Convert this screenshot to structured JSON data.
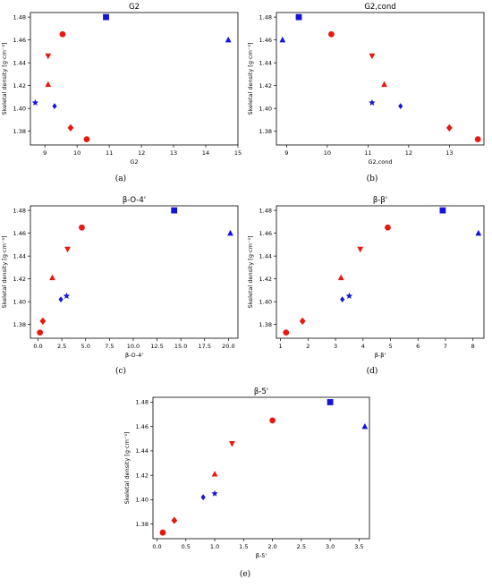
{
  "colors": {
    "red": "#e8190f",
    "blue": "#1414d8"
  },
  "chart_data": [
    {
      "type": "scatter",
      "id": "a",
      "caption": "(a)",
      "title": "G2",
      "xlabel": "G2",
      "ylabel": "Skeletal density [g·cm⁻³]",
      "xlim": [
        8.55,
        15.0
      ],
      "ylim": [
        1.368,
        1.484
      ],
      "xticks": [
        9,
        10,
        11,
        12,
        13,
        14,
        15
      ],
      "yticks": [
        1.38,
        1.4,
        1.42,
        1.44,
        1.46,
        1.48
      ],
      "points": [
        {
          "x": 9.55,
          "y": 1.465,
          "marker": "circle",
          "color": "red"
        },
        {
          "x": 9.1,
          "y": 1.446,
          "marker": "triangle-down",
          "color": "red"
        },
        {
          "x": 9.1,
          "y": 1.421,
          "marker": "triangle-up",
          "color": "red"
        },
        {
          "x": 9.8,
          "y": 1.383,
          "marker": "diamond",
          "color": "red"
        },
        {
          "x": 10.3,
          "y": 1.373,
          "marker": "circle",
          "color": "red"
        },
        {
          "x": 10.9,
          "y": 1.48,
          "marker": "square",
          "color": "blue"
        },
        {
          "x": 14.7,
          "y": 1.46,
          "marker": "triangle-up",
          "color": "blue"
        },
        {
          "x": 8.7,
          "y": 1.405,
          "marker": "star",
          "color": "blue"
        },
        {
          "x": 9.3,
          "y": 1.402,
          "marker": "plus",
          "color": "blue"
        }
      ]
    },
    {
      "type": "scatter",
      "id": "b",
      "caption": "(b)",
      "title": "G2,cond",
      "xlabel": "G2,cond",
      "ylabel": "Skeletal density [g·cm⁻³]",
      "xlim": [
        8.75,
        13.85
      ],
      "ylim": [
        1.368,
        1.484
      ],
      "xticks": [
        9,
        10,
        11,
        12,
        13
      ],
      "yticks": [
        1.38,
        1.4,
        1.42,
        1.44,
        1.46,
        1.48
      ],
      "points": [
        {
          "x": 10.1,
          "y": 1.465,
          "marker": "circle",
          "color": "red"
        },
        {
          "x": 11.1,
          "y": 1.446,
          "marker": "triangle-down",
          "color": "red"
        },
        {
          "x": 11.4,
          "y": 1.421,
          "marker": "triangle-up",
          "color": "red"
        },
        {
          "x": 13.0,
          "y": 1.383,
          "marker": "diamond",
          "color": "red"
        },
        {
          "x": 13.7,
          "y": 1.373,
          "marker": "circle",
          "color": "red"
        },
        {
          "x": 9.3,
          "y": 1.48,
          "marker": "square",
          "color": "blue"
        },
        {
          "x": 8.9,
          "y": 1.46,
          "marker": "triangle-up",
          "color": "blue"
        },
        {
          "x": 11.1,
          "y": 1.405,
          "marker": "star",
          "color": "blue"
        },
        {
          "x": 11.8,
          "y": 1.402,
          "marker": "plus",
          "color": "blue"
        }
      ]
    },
    {
      "type": "scatter",
      "id": "c",
      "caption": "(c)",
      "title": "β-O-4'",
      "xlabel": "β-O-4'",
      "ylabel": "Skeletal density [g·cm⁻³]",
      "xlim": [
        -0.8,
        21.0
      ],
      "ylim": [
        1.368,
        1.484
      ],
      "xticks": [
        0.0,
        2.5,
        5.0,
        7.5,
        10.0,
        12.5,
        15.0,
        17.5,
        20.0
      ],
      "ytickFmt": 2,
      "yticks": [
        1.38,
        1.4,
        1.42,
        1.44,
        1.46,
        1.48
      ],
      "points": [
        {
          "x": 4.6,
          "y": 1.465,
          "marker": "circle",
          "color": "red"
        },
        {
          "x": 3.1,
          "y": 1.446,
          "marker": "triangle-down",
          "color": "red"
        },
        {
          "x": 1.5,
          "y": 1.421,
          "marker": "triangle-up",
          "color": "red"
        },
        {
          "x": 0.5,
          "y": 1.383,
          "marker": "diamond",
          "color": "red"
        },
        {
          "x": 0.2,
          "y": 1.373,
          "marker": "circle",
          "color": "red"
        },
        {
          "x": 14.3,
          "y": 1.48,
          "marker": "square",
          "color": "blue"
        },
        {
          "x": 20.2,
          "y": 1.46,
          "marker": "triangle-up",
          "color": "blue"
        },
        {
          "x": 3.0,
          "y": 1.405,
          "marker": "star",
          "color": "blue"
        },
        {
          "x": 2.4,
          "y": 1.402,
          "marker": "plus",
          "color": "blue"
        }
      ]
    },
    {
      "type": "scatter",
      "id": "d",
      "caption": "(d)",
      "title": "β-β'",
      "xlabel": "β-β'",
      "ylabel": "Skeletal density [g·cm⁻³]",
      "xlim": [
        0.85,
        8.4
      ],
      "ylim": [
        1.368,
        1.484
      ],
      "xticks": [
        1,
        2,
        3,
        4,
        5,
        6,
        7,
        8
      ],
      "yticks": [
        1.38,
        1.4,
        1.42,
        1.44,
        1.46,
        1.48
      ],
      "points": [
        {
          "x": 4.9,
          "y": 1.465,
          "marker": "circle",
          "color": "red"
        },
        {
          "x": 3.9,
          "y": 1.446,
          "marker": "triangle-down",
          "color": "red"
        },
        {
          "x": 3.2,
          "y": 1.421,
          "marker": "triangle-up",
          "color": "red"
        },
        {
          "x": 1.8,
          "y": 1.383,
          "marker": "diamond",
          "color": "red"
        },
        {
          "x": 1.2,
          "y": 1.373,
          "marker": "circle",
          "color": "red"
        },
        {
          "x": 6.9,
          "y": 1.48,
          "marker": "square",
          "color": "blue"
        },
        {
          "x": 8.2,
          "y": 1.46,
          "marker": "triangle-up",
          "color": "blue"
        },
        {
          "x": 3.5,
          "y": 1.405,
          "marker": "star",
          "color": "blue"
        },
        {
          "x": 3.25,
          "y": 1.402,
          "marker": "plus",
          "color": "blue"
        }
      ]
    },
    {
      "type": "scatter",
      "id": "e",
      "caption": "(e)",
      "title": "β-5'",
      "xlabel": "β-5'",
      "ylabel": "Skeletal density [g·cm⁻³]",
      "xlim": [
        -0.07,
        3.68
      ],
      "ylim": [
        1.368,
        1.484
      ],
      "xticks": [
        0.0,
        0.5,
        1.0,
        1.5,
        2.0,
        2.5,
        3.0,
        3.5
      ],
      "yticks": [
        1.38,
        1.4,
        1.42,
        1.44,
        1.46,
        1.48
      ],
      "points": [
        {
          "x": 2.0,
          "y": 1.465,
          "marker": "circle",
          "color": "red"
        },
        {
          "x": 1.3,
          "y": 1.446,
          "marker": "triangle-down",
          "color": "red"
        },
        {
          "x": 1.0,
          "y": 1.421,
          "marker": "triangle-up",
          "color": "red"
        },
        {
          "x": 0.3,
          "y": 1.383,
          "marker": "diamond",
          "color": "red"
        },
        {
          "x": 0.1,
          "y": 1.373,
          "marker": "circle",
          "color": "red"
        },
        {
          "x": 3.0,
          "y": 1.48,
          "marker": "square",
          "color": "blue"
        },
        {
          "x": 3.6,
          "y": 1.46,
          "marker": "triangle-up",
          "color": "blue"
        },
        {
          "x": 1.0,
          "y": 1.405,
          "marker": "star",
          "color": "blue"
        },
        {
          "x": 0.8,
          "y": 1.402,
          "marker": "plus",
          "color": "blue"
        }
      ]
    }
  ]
}
